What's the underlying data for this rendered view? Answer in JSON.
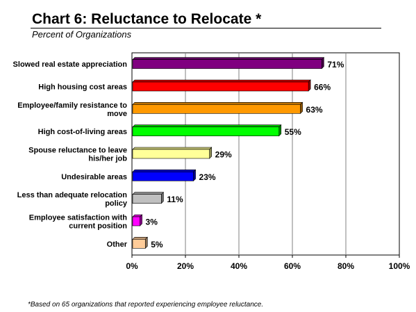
{
  "chart_data": {
    "type": "bar",
    "orientation": "horizontal",
    "title": "Chart 6: Reluctance to Relocate *",
    "subtitle": "Percent of Organizations",
    "categories": [
      "Slowed real estate appreciation",
      "High housing cost areas",
      "Employee/family resistance to move",
      "High cost-of-living areas",
      "Spouse reluctance to leave his/her job",
      "Undesirable areas",
      "Less than adequate relocation policy",
      "Employee satisfaction with current position",
      "Other"
    ],
    "category_lines": [
      [
        "Slowed real estate appreciation"
      ],
      [
        "High housing cost areas"
      ],
      [
        "Employee/family resistance to",
        "move"
      ],
      [
        "High cost-of-living areas"
      ],
      [
        "Spouse reluctance to leave",
        "his/her job"
      ],
      [
        "Undesirable areas"
      ],
      [
        "Less than adequate relocation",
        "policy"
      ],
      [
        "Employee satisfaction with",
        "current position"
      ],
      [
        "Other"
      ]
    ],
    "values": [
      71,
      66,
      63,
      55,
      29,
      23,
      11,
      3,
      5
    ],
    "value_labels": [
      "71%",
      "66%",
      "63%",
      "55%",
      "29%",
      "23%",
      "11%",
      "3%",
      "5%"
    ],
    "colors": [
      "#800080",
      "#ff0000",
      "#ff9900",
      "#00ff00",
      "#ffff99",
      "#0000ff",
      "#c0c0c0",
      "#ff00ff",
      "#ffcc99"
    ],
    "xlim": [
      0,
      100
    ],
    "xticks": [
      0,
      20,
      40,
      60,
      80,
      100
    ],
    "xtick_labels": [
      "0%",
      "20%",
      "40%",
      "60%",
      "80%",
      "100%"
    ],
    "grid": "vertical",
    "legend": "none",
    "footnote": "*Based on 65 organizations that reported experiencing employee reluctance."
  }
}
